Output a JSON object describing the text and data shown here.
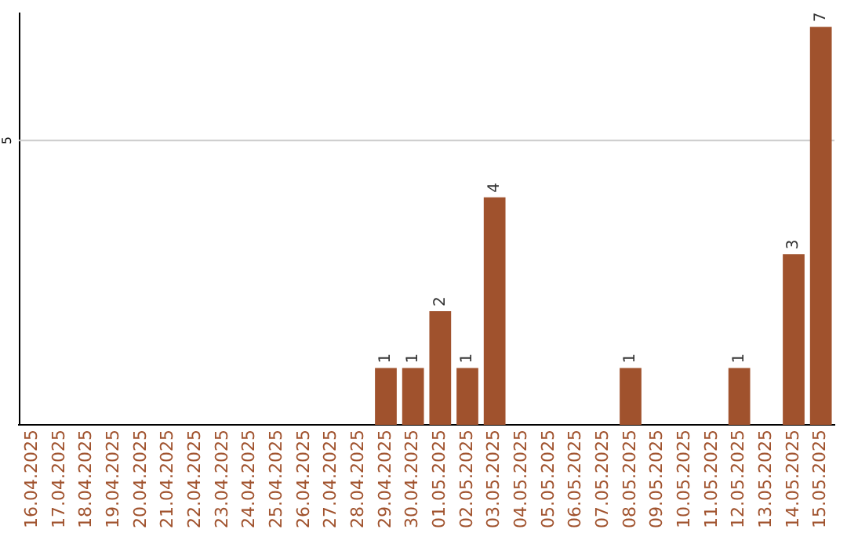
{
  "chart_data": {
    "type": "bar",
    "categories": [
      "16.04.2025",
      "17.04.2025",
      "18.04.2025",
      "19.04.2025",
      "20.04.2025",
      "21.04.2025",
      "22.04.2025",
      "23.04.2025",
      "24.04.2025",
      "25.04.2025",
      "26.04.2025",
      "27.04.2025",
      "28.04.2025",
      "29.04.2025",
      "30.04.2025",
      "01.05.2025",
      "02.05.2025",
      "03.05.2025",
      "04.05.2025",
      "05.05.2025",
      "06.05.2025",
      "07.05.2025",
      "08.05.2025",
      "09.05.2025",
      "10.05.2025",
      "11.05.2025",
      "12.05.2025",
      "13.05.2025",
      "14.05.2025",
      "15.05.2025"
    ],
    "values": [
      null,
      null,
      null,
      null,
      null,
      null,
      null,
      null,
      null,
      null,
      null,
      null,
      null,
      1,
      1,
      2,
      1,
      4,
      null,
      null,
      null,
      null,
      1,
      null,
      null,
      null,
      1,
      null,
      3,
      7
    ],
    "value_labels": [
      null,
      null,
      null,
      null,
      null,
      null,
      null,
      null,
      null,
      null,
      null,
      null,
      null,
      "1",
      "1",
      "2",
      "1",
      "4",
      null,
      null,
      null,
      null,
      "1",
      null,
      null,
      null,
      "1",
      null,
      "3",
      "7"
    ],
    "color": "#a0522d",
    "ylim": [
      0,
      7.25
    ],
    "ref_lines": [
      {
        "axis": "y",
        "value": 5,
        "label": "5",
        "color": "#cccccc"
      }
    ],
    "legend": false
  }
}
